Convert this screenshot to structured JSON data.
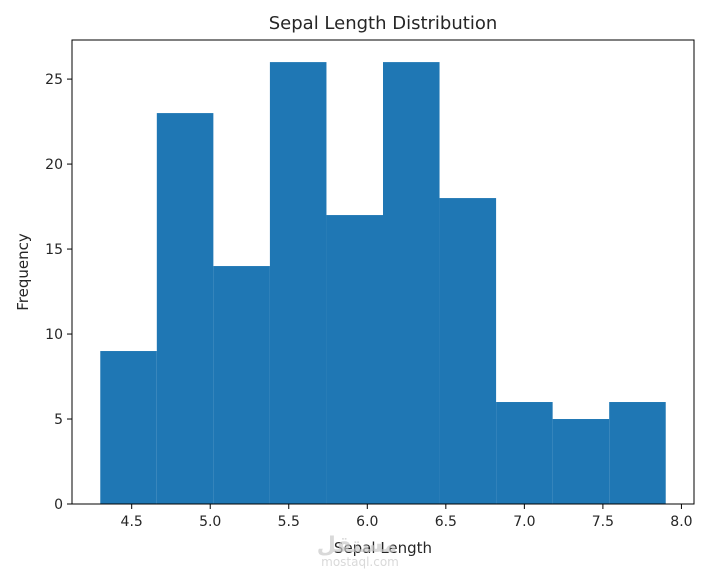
{
  "chart_data": {
    "type": "bar",
    "title": "Sepal Length Distribution",
    "xlabel": "Sepal Length",
    "ylabel": "Frequency",
    "bin_edges": [
      4.3,
      4.66,
      5.02,
      5.38,
      5.74,
      6.1,
      6.46,
      6.82,
      7.18,
      7.54,
      7.9
    ],
    "values": [
      9,
      23,
      14,
      26,
      17,
      26,
      18,
      6,
      5,
      6
    ],
    "xlim": [
      4.12,
      8.08
    ],
    "ylim": [
      0,
      27.3
    ],
    "xticks": [
      4.5,
      5.0,
      5.5,
      6.0,
      6.5,
      7.0,
      7.5,
      8.0
    ],
    "xtick_labels": [
      "4.5",
      "5.0",
      "5.5",
      "6.0",
      "6.5",
      "7.0",
      "7.5",
      "8.0"
    ],
    "yticks": [
      0,
      5,
      10,
      15,
      20,
      25
    ],
    "ytick_labels": [
      "0",
      "5",
      "10",
      "15",
      "20",
      "25"
    ],
    "grid": false,
    "bar_color": "#1f77b4"
  },
  "watermark": {
    "main": "مستقل",
    "sub": "mostaql.com"
  }
}
